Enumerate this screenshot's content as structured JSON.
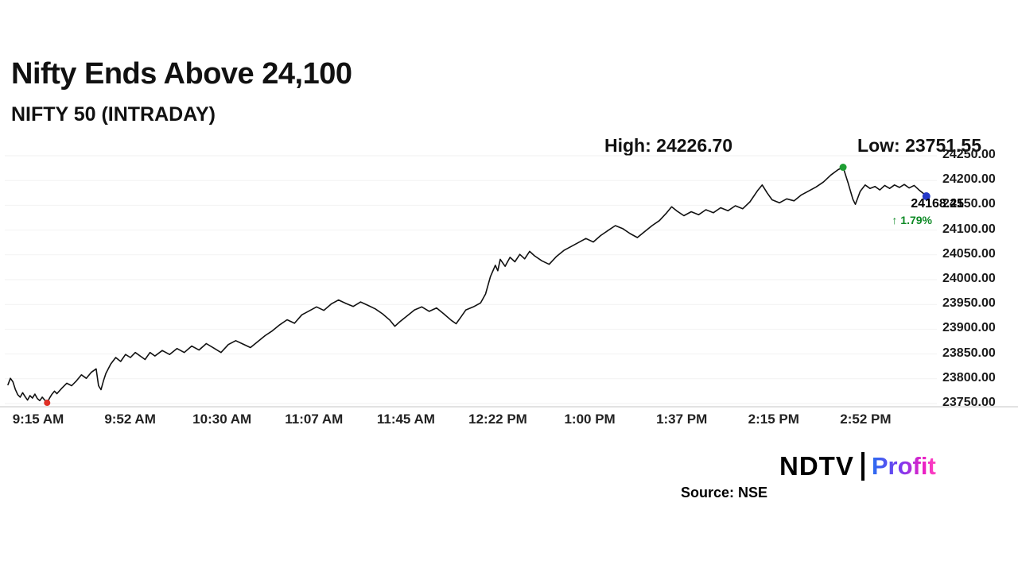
{
  "header": {
    "title": "Nifty Ends Above 24,100",
    "subtitle": "NIFTY 50 (INTRADAY)"
  },
  "stats": {
    "high_label": "High: 24226.70",
    "low_label": "Low: 23751.55"
  },
  "last": {
    "price": "24168.25",
    "change": "↑ 1.79%",
    "change_color": "#0e8a26"
  },
  "footer": {
    "brand_left": "NDTV",
    "brand_right": "Profit",
    "source": "Source: NSE"
  },
  "chart_data": {
    "type": "line",
    "title": "NIFTY 50 (INTRADAY)",
    "line_color": "#111111",
    "grid_color": "#f2f2f2",
    "axis_color": "#d9d9d9",
    "xlim": [
      0,
      378
    ],
    "ylim": [
      23750,
      24250
    ],
    "x_unit": "minutes since 9:15 AM",
    "x_ticks": [
      {
        "t": 0,
        "label": "9:15 AM"
      },
      {
        "t": 37.5,
        "label": "9:52 AM"
      },
      {
        "t": 75,
        "label": "10:30 AM"
      },
      {
        "t": 112.5,
        "label": "11:07 AM"
      },
      {
        "t": 150,
        "label": "11:45 AM"
      },
      {
        "t": 187.5,
        "label": "12:22 PM"
      },
      {
        "t": 225,
        "label": "1:00 PM"
      },
      {
        "t": 262.5,
        "label": "1:37 PM"
      },
      {
        "t": 300,
        "label": "2:15 PM"
      },
      {
        "t": 337.5,
        "label": "2:52 PM"
      }
    ],
    "y_ticks": [
      24250,
      24200,
      24150,
      24100,
      24050,
      24000,
      23950,
      23900,
      23850,
      23800,
      23750
    ],
    "high": 24226.7,
    "low": 23751.55,
    "close": 24168.25,
    "change_pct": 1.79,
    "markers": [
      {
        "name": "low-marker",
        "t": 16,
        "price": 23751.55,
        "color": "#e03127",
        "r": 4
      },
      {
        "name": "high-marker",
        "t": 341,
        "price": 24226.7,
        "color": "#1e9e33",
        "r": 4.5
      },
      {
        "name": "last-marker",
        "t": 375,
        "price": 24168.25,
        "color": "#2438c8",
        "r": 5
      }
    ],
    "points": [
      [
        0,
        23788
      ],
      [
        1,
        23801
      ],
      [
        2,
        23794
      ],
      [
        3,
        23779
      ],
      [
        4,
        23768
      ],
      [
        5,
        23763
      ],
      [
        6,
        23772
      ],
      [
        7,
        23764
      ],
      [
        8,
        23757
      ],
      [
        9,
        23766
      ],
      [
        10,
        23761
      ],
      [
        11,
        23769
      ],
      [
        12,
        23760
      ],
      [
        13,
        23756
      ],
      [
        14,
        23763
      ],
      [
        15,
        23757
      ],
      [
        16,
        23751.55
      ],
      [
        17,
        23761
      ],
      [
        18,
        23769
      ],
      [
        19,
        23775
      ],
      [
        20,
        23770
      ],
      [
        22,
        23781
      ],
      [
        24,
        23791
      ],
      [
        26,
        23786
      ],
      [
        28,
        23796
      ],
      [
        30,
        23808
      ],
      [
        32,
        23801
      ],
      [
        34,
        23813
      ],
      [
        36,
        23820
      ],
      [
        37,
        23786
      ],
      [
        38,
        23778
      ],
      [
        39,
        23796
      ],
      [
        40,
        23811
      ],
      [
        42,
        23830
      ],
      [
        44,
        23843
      ],
      [
        46,
        23835
      ],
      [
        48,
        23849
      ],
      [
        50,
        23843
      ],
      [
        52,
        23853
      ],
      [
        54,
        23846
      ],
      [
        56,
        23839
      ],
      [
        58,
        23853
      ],
      [
        60,
        23846
      ],
      [
        63,
        23857
      ],
      [
        66,
        23849
      ],
      [
        69,
        23861
      ],
      [
        72,
        23853
      ],
      [
        75,
        23866
      ],
      [
        78,
        23858
      ],
      [
        81,
        23871
      ],
      [
        84,
        23862
      ],
      [
        87,
        23853
      ],
      [
        90,
        23869
      ],
      [
        93,
        23877
      ],
      [
        96,
        23870
      ],
      [
        99,
        23863
      ],
      [
        102,
        23875
      ],
      [
        105,
        23887
      ],
      [
        108,
        23897
      ],
      [
        111,
        23909
      ],
      [
        114,
        23919
      ],
      [
        117,
        23912
      ],
      [
        120,
        23929
      ],
      [
        123,
        23937
      ],
      [
        126,
        23945
      ],
      [
        129,
        23938
      ],
      [
        132,
        23951
      ],
      [
        135,
        23959
      ],
      [
        138,
        23952
      ],
      [
        141,
        23946
      ],
      [
        144,
        23955
      ],
      [
        147,
        23948
      ],
      [
        150,
        23941
      ],
      [
        153,
        23931
      ],
      [
        156,
        23918
      ],
      [
        158,
        23906
      ],
      [
        160,
        23915
      ],
      [
        163,
        23927
      ],
      [
        166,
        23939
      ],
      [
        169,
        23945
      ],
      [
        172,
        23936
      ],
      [
        175,
        23943
      ],
      [
        178,
        23931
      ],
      [
        181,
        23918
      ],
      [
        183,
        23911
      ],
      [
        185,
        23925
      ],
      [
        187,
        23939
      ],
      [
        190,
        23945
      ],
      [
        193,
        23953
      ],
      [
        195,
        23971
      ],
      [
        197,
        24006
      ],
      [
        199,
        24029
      ],
      [
        200,
        24018
      ],
      [
        201,
        24041
      ],
      [
        203,
        24027
      ],
      [
        205,
        24045
      ],
      [
        207,
        24036
      ],
      [
        209,
        24051
      ],
      [
        211,
        24042
      ],
      [
        213,
        24057
      ],
      [
        215,
        24048
      ],
      [
        218,
        24038
      ],
      [
        221,
        24031
      ],
      [
        224,
        24047
      ],
      [
        227,
        24059
      ],
      [
        230,
        24067
      ],
      [
        233,
        24075
      ],
      [
        236,
        24083
      ],
      [
        239,
        24076
      ],
      [
        242,
        24089
      ],
      [
        245,
        24099
      ],
      [
        248,
        24109
      ],
      [
        251,
        24103
      ],
      [
        254,
        24093
      ],
      [
        257,
        24085
      ],
      [
        260,
        24097
      ],
      [
        263,
        24109
      ],
      [
        266,
        24119
      ],
      [
        269,
        24135
      ],
      [
        271,
        24147
      ],
      [
        273,
        24139
      ],
      [
        276,
        24129
      ],
      [
        279,
        24137
      ],
      [
        282,
        24131
      ],
      [
        285,
        24141
      ],
      [
        288,
        24135
      ],
      [
        291,
        24145
      ],
      [
        294,
        24139
      ],
      [
        297,
        24149
      ],
      [
        300,
        24143
      ],
      [
        303,
        24157
      ],
      [
        306,
        24179
      ],
      [
        308,
        24191
      ],
      [
        310,
        24175
      ],
      [
        312,
        24161
      ],
      [
        315,
        24155
      ],
      [
        318,
        24163
      ],
      [
        321,
        24159
      ],
      [
        324,
        24171
      ],
      [
        327,
        24179
      ],
      [
        330,
        24187
      ],
      [
        333,
        24197
      ],
      [
        336,
        24211
      ],
      [
        339,
        24222
      ],
      [
        341,
        24226.7
      ],
      [
        343,
        24196
      ],
      [
        345,
        24162
      ],
      [
        346,
        24152
      ],
      [
        348,
        24178
      ],
      [
        350,
        24191
      ],
      [
        352,
        24184
      ],
      [
        354,
        24188
      ],
      [
        356,
        24181
      ],
      [
        358,
        24190
      ],
      [
        360,
        24184
      ],
      [
        362,
        24191
      ],
      [
        364,
        24186
      ],
      [
        366,
        24192
      ],
      [
        368,
        24185
      ],
      [
        370,
        24190
      ],
      [
        372,
        24181
      ],
      [
        374,
        24173
      ],
      [
        375,
        24168.25
      ]
    ]
  }
}
